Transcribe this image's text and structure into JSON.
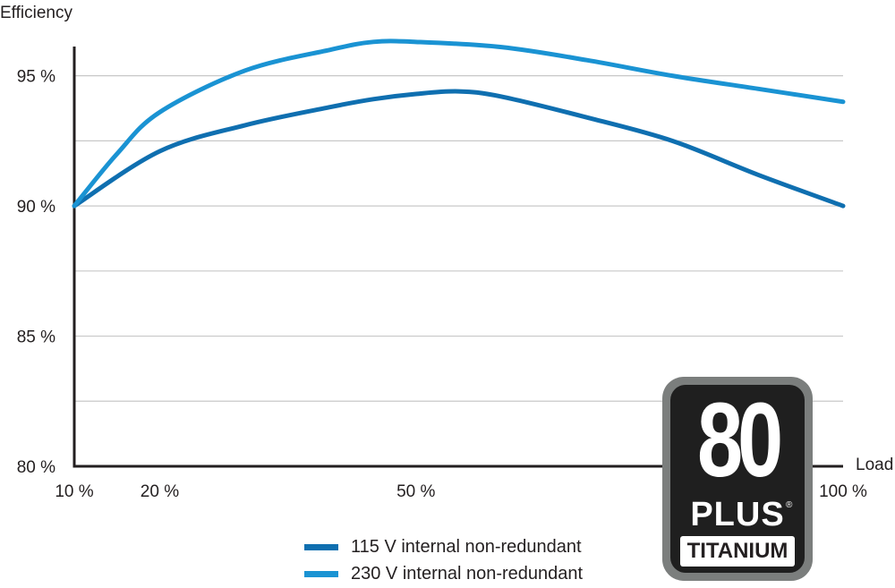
{
  "chart_data": {
    "type": "line",
    "xlabel": "Load",
    "ylabel": "Efficiency",
    "x_ticks": [
      {
        "value": 10,
        "label": "10 %"
      },
      {
        "value": 20,
        "label": "20 %"
      },
      {
        "value": 50,
        "label": "50 %"
      },
      {
        "value": 100,
        "label": "100 %"
      }
    ],
    "y_ticks": [
      {
        "value": 80,
        "label": "80 %"
      },
      {
        "value": 85,
        "label": "85 %"
      },
      {
        "value": 90,
        "label": "90 %"
      },
      {
        "value": 95,
        "label": "95 %"
      }
    ],
    "y_gridlines": [
      82.5,
      85,
      87.5,
      90,
      92.5,
      95
    ],
    "xlim": [
      10,
      100
    ],
    "ylim": [
      80,
      96.5
    ],
    "grid": true,
    "legend_position": "bottom-center",
    "series": [
      {
        "name": "115 V internal non-redundant",
        "color": "#0f6fb0",
        "x": [
          10,
          20,
          30,
          40,
          45,
          50,
          55,
          60,
          70,
          80,
          90,
          100
        ],
        "values": [
          90.0,
          92.1,
          93.1,
          93.8,
          94.1,
          94.3,
          94.4,
          94.2,
          93.4,
          92.5,
          91.2,
          90.0
        ]
      },
      {
        "name": "230 V internal non-redundant",
        "color": "#1a93d3",
        "x": [
          10,
          15,
          20,
          30,
          40,
          45,
          50,
          60,
          70,
          80,
          90,
          100
        ],
        "values": [
          90.0,
          92.0,
          93.6,
          95.2,
          96.0,
          96.3,
          96.3,
          96.1,
          95.6,
          95.0,
          94.5,
          94.0
        ]
      }
    ]
  },
  "badge": {
    "number": "80",
    "plus": "PLUS",
    "registered": "®",
    "tier": "TITANIUM"
  }
}
